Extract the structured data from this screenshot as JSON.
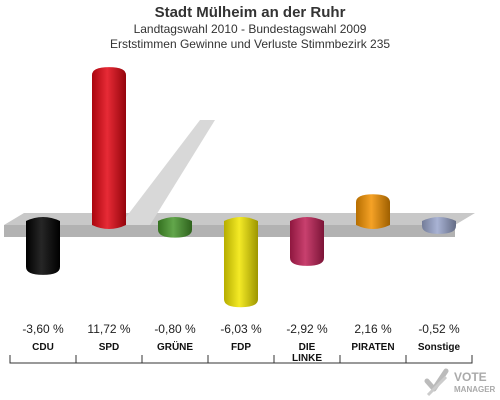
{
  "header": {
    "title": "Stadt Mülheim an der Ruhr",
    "subtitle1": "Landtagswahl 2010 - Bundestagswahl 2009",
    "subtitle2": "Erststimmen Gewinne und Verluste Stimmbezirk 235"
  },
  "chart_data": {
    "type": "bar",
    "categories": [
      "CDU",
      "SPD",
      "GRÜNE",
      "FDP",
      "DIE LINKE",
      "PIRATEN",
      "Sonstige"
    ],
    "category_lines": [
      [
        "CDU"
      ],
      [
        "SPD"
      ],
      [
        "GRÜNE"
      ],
      [
        "FDP"
      ],
      [
        "DIE",
        "LINKE"
      ],
      [
        "PIRATEN"
      ],
      [
        "Sonstige"
      ]
    ],
    "values": [
      -3.6,
      11.72,
      -0.8,
      -6.03,
      -2.92,
      2.16,
      -0.52
    ],
    "value_labels": [
      "-3,60 %",
      "11,72 %",
      "-0,80 %",
      "-6,03 %",
      "-2,92 %",
      "2,16 %",
      "-0,52 %"
    ],
    "colors": [
      "#000000",
      "#e30613",
      "#46962b",
      "#f2e600",
      "#be1e54",
      "#f39200",
      "#9aa6cc"
    ]
  },
  "watermark": {
    "line1": "VOTE",
    "line2": "MANAGER"
  }
}
